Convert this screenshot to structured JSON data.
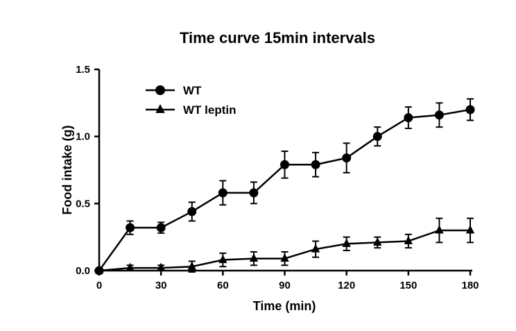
{
  "chart_data": {
    "type": "line",
    "title": "Time curve 15min intervals",
    "xlabel": "Time  (min)",
    "ylabel": "Food intake (g)",
    "x": [
      0,
      15,
      30,
      45,
      60,
      75,
      90,
      105,
      120,
      135,
      150,
      165,
      180
    ],
    "xlim": [
      0,
      180
    ],
    "ylim": [
      0,
      1.5
    ],
    "xticks": [
      0,
      30,
      60,
      90,
      120,
      150,
      180
    ],
    "xtick_labels": [
      "0",
      "30",
      "60",
      "90",
      "120",
      "150",
      "180"
    ],
    "yticks": [
      0,
      0.5,
      1.0,
      1.5
    ],
    "ytick_labels": [
      "0.0",
      "0.5",
      "1.0",
      "1.5"
    ],
    "grid": false,
    "legend_position": "inside-top-left",
    "line_color": "#000000",
    "series": [
      {
        "name": "WT",
        "marker": "circle",
        "color": "#000000",
        "values": [
          0,
          0.32,
          0.32,
          0.44,
          0.58,
          0.58,
          0.79,
          0.79,
          0.84,
          1.0,
          1.14,
          1.16,
          1.2
        ],
        "errors": [
          0,
          0.05,
          0.04,
          0.07,
          0.09,
          0.08,
          0.1,
          0.09,
          0.11,
          0.07,
          0.08,
          0.09,
          0.08
        ]
      },
      {
        "name": "WT leptin",
        "marker": "triangle",
        "color": "#000000",
        "values": [
          0,
          0.02,
          0.02,
          0.03,
          0.08,
          0.09,
          0.09,
          0.16,
          0.2,
          0.21,
          0.22,
          0.3,
          0.3
        ],
        "errors": [
          0,
          0.02,
          0.02,
          0.04,
          0.05,
          0.05,
          0.05,
          0.06,
          0.05,
          0.04,
          0.05,
          0.09,
          0.09
        ]
      }
    ]
  }
}
